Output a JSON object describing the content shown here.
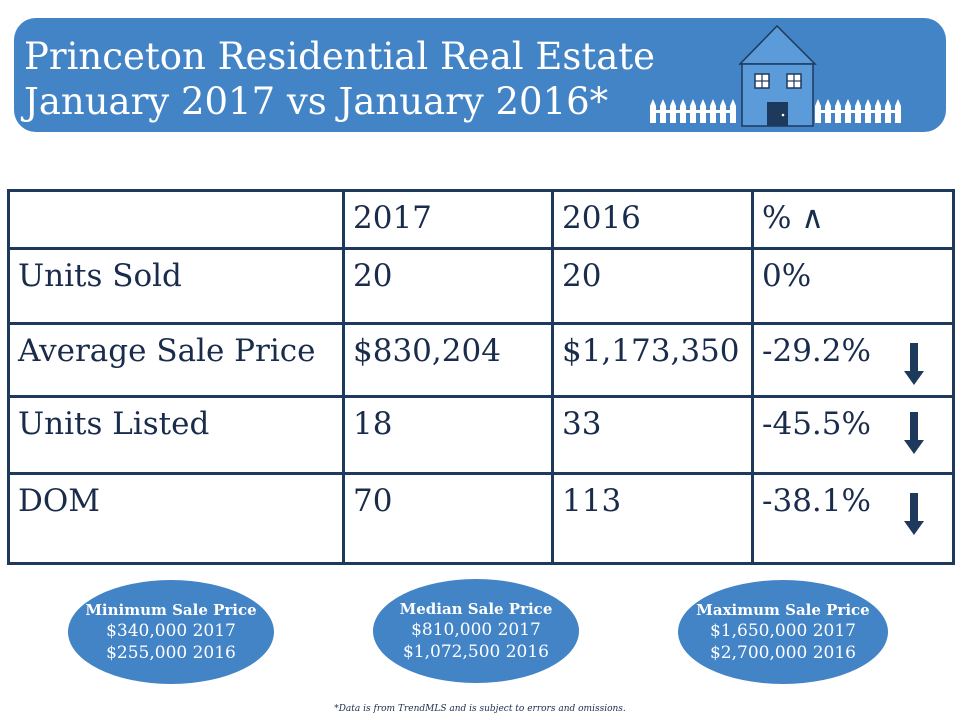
{
  "banner": {
    "title_line1": "Princeton Residential Real Estate",
    "title_line2": "January 2017 vs January 2016*",
    "icon": "house-with-fence-icon"
  },
  "table": {
    "headers": [
      "",
      "2017",
      "2016",
      "% ∧"
    ],
    "rows": [
      {
        "label": "Units Sold",
        "v2017": "20",
        "v2016": "20",
        "change": "0%",
        "trend": "none"
      },
      {
        "label": "Average Sale Price",
        "v2017": "$830,204",
        "v2016": "$1,173,350",
        "change": "-29.2%",
        "trend": "down"
      },
      {
        "label": "Units Listed",
        "v2017": "18",
        "v2016": "33",
        "change": "-45.5%",
        "trend": "down"
      },
      {
        "label": "DOM",
        "v2017": "70",
        "v2016": "113",
        "change": "-38.1%",
        "trend": "down"
      }
    ]
  },
  "ovals": [
    {
      "title": "Minimum Sale Price",
      "line1": "$340,000 2017",
      "line2": "$255,000 2016"
    },
    {
      "title": "Median Sale Price",
      "line1": "$810,000 2017",
      "line2": "$1,072,500 2016"
    },
    {
      "title": "Maximum Sale Price",
      "line1": "$1,650,000 2017",
      "line2": "$2,700,000 2016"
    }
  ],
  "footnote": "*Data is from TrendMLS and is subject to errors and omissions.",
  "colors": {
    "accent": "#4384c7",
    "border": "#1d3a5c",
    "text": "#1a2c4c",
    "arrow": "#1d3a5c"
  }
}
